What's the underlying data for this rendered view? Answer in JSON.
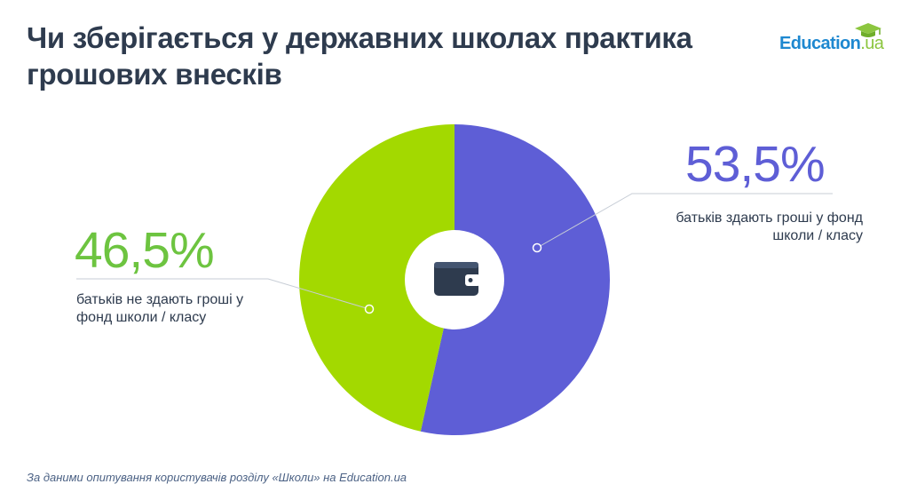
{
  "title": "Чи зберігається у державних школах практика грошових внесків",
  "logo": {
    "main": "Education",
    "suffix": ".ua"
  },
  "footer": "За даними опитування користувачів розділу «Школи» на Education.ua",
  "center_icon": "wallet-icon",
  "chart_data": {
    "type": "pie",
    "title": "Чи зберігається у державних школах практика грошових внесків",
    "slices": [
      {
        "label": "батьків здають гроші у фонд школи / класу",
        "value": 53.5,
        "display": "53,5%",
        "color": "#5e5ed6"
      },
      {
        "label": "батьків не здають гроші у фонд школи / класу",
        "value": 46.5,
        "display": "46,5%",
        "color": "#a3d900"
      }
    ]
  }
}
